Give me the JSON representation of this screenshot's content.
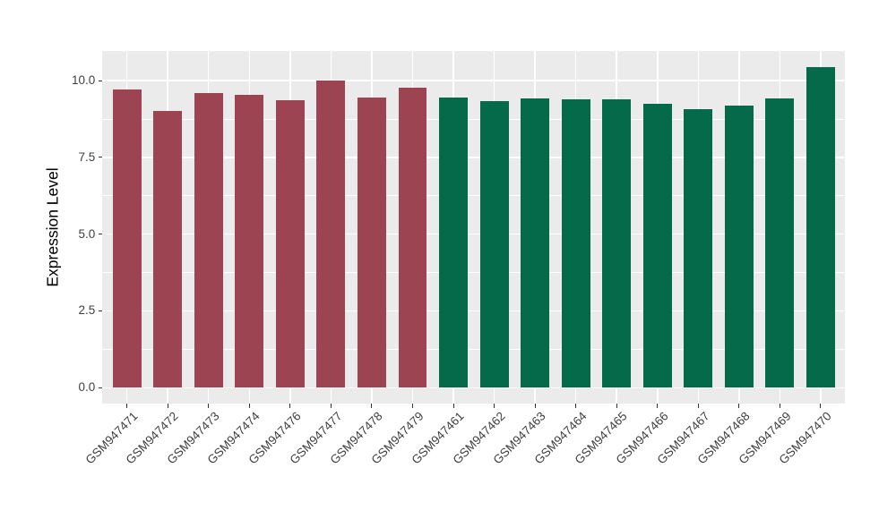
{
  "chart_data": {
    "type": "bar",
    "title": "",
    "xlabel": "",
    "ylabel": "Expression Level",
    "ylim": [
      0,
      10.97
    ],
    "grid": "on",
    "legend": "none",
    "bar_width_fraction": 0.7,
    "yticks": {
      "values": [
        0,
        2.5,
        5,
        7.5,
        10
      ],
      "labels": [
        "0.0",
        "2.5",
        "5.0",
        "7.5",
        "10.0"
      ]
    },
    "yticks_minor": [
      1.25,
      3.75,
      6.25,
      8.75
    ],
    "categories": [
      "GSM947471",
      "GSM947472",
      "GSM947473",
      "GSM947474",
      "GSM947476",
      "GSM947477",
      "GSM947478",
      "GSM947479",
      "GSM947461",
      "GSM947462",
      "GSM947463",
      "GSM947464",
      "GSM947465",
      "GSM947466",
      "GSM947467",
      "GSM947468",
      "GSM947469",
      "GSM947470"
    ],
    "values": [
      9.7,
      9.0,
      9.6,
      9.52,
      9.37,
      10.0,
      9.44,
      9.77,
      9.45,
      9.34,
      9.42,
      9.39,
      9.38,
      9.25,
      9.06,
      9.17,
      9.42,
      10.45
    ],
    "bar_colors": [
      "#9D4452",
      "#9D4452",
      "#9D4452",
      "#9D4452",
      "#9D4452",
      "#9D4452",
      "#9D4452",
      "#9D4452",
      "#056A49",
      "#056A49",
      "#056A49",
      "#056A49",
      "#056A49",
      "#056A49",
      "#056A49",
      "#056A49",
      "#056A49",
      "#056A49"
    ]
  },
  "style": {
    "figure_background": "#FFFFFF",
    "panel_background": "#EBEBEB",
    "gridline_color": "#FFFFFF",
    "axis_text_color": "#404040",
    "axis_title_color": "#000000",
    "tick_mark_color": "#333333"
  }
}
